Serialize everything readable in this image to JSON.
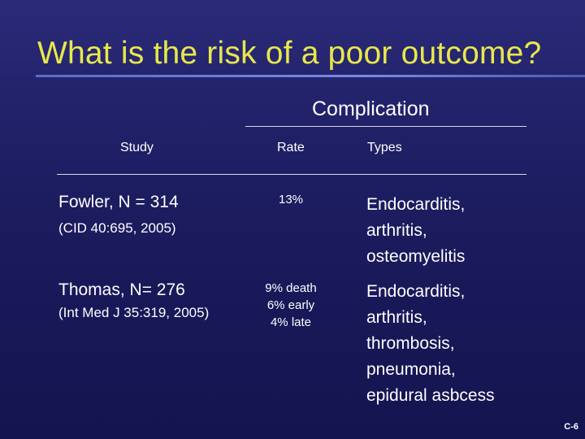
{
  "slide": {
    "title": "What is the risk of a poor outcome?",
    "slide_number": "C-6"
  },
  "table": {
    "group_header": "Complication",
    "columns": {
      "study": "Study",
      "rate": "Rate",
      "types": "Types"
    },
    "rows": [
      {
        "study": "Fowler, N = 314",
        "citation": "(CID 40:695, 2005)",
        "rate": [
          "13%"
        ],
        "types": [
          "Endocarditis,",
          "arthritis,",
          "osteomyelitis"
        ]
      },
      {
        "study": "Thomas, N= 276",
        "citation": "(Int Med J 35:319, 2005)",
        "rate": [
          "9% death",
          "6% early",
          "4% late"
        ],
        "types": [
          "Endocarditis,",
          "arthritis,",
          "thrombosis,",
          "pneumonia,",
          "epidural asbcess"
        ]
      }
    ]
  },
  "colors": {
    "background": "#1c1c60",
    "title": "#e8e84a",
    "title_rule": "#6a7ad8",
    "text": "#ffffff"
  }
}
